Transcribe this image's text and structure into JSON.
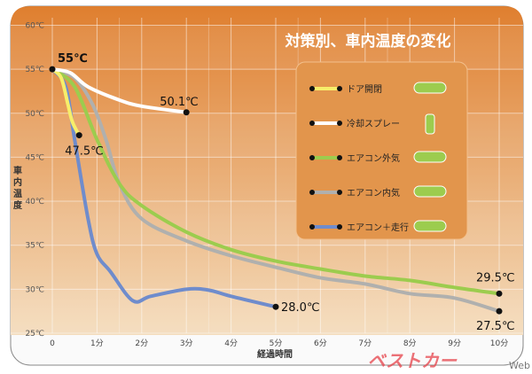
{
  "chart_data": {
    "type": "line",
    "title": "対策別、車内温度の変化",
    "xlabel": "経過時間",
    "ylabel": "車内温度",
    "xlim": [
      0,
      10
    ],
    "ylim": [
      25,
      60
    ],
    "x_ticks": [
      "0",
      "1分",
      "2分",
      "3分",
      "4分",
      "5分",
      "6分",
      "7分",
      "8分",
      "9分",
      "10分"
    ],
    "y_ticks": [
      "25℃",
      "30℃",
      "35℃",
      "40℃",
      "45℃",
      "50℃",
      "55℃",
      "60℃"
    ],
    "grid": true,
    "legend_position": "top-right",
    "series": [
      {
        "name": "ドア開閉",
        "color": "#f7ee6a",
        "icon": "car-doors-open-icon",
        "points": [
          [
            0,
            55
          ],
          [
            0.2,
            54
          ],
          [
            0.35,
            51
          ],
          [
            0.45,
            49
          ],
          [
            0.6,
            47.5
          ]
        ],
        "end_label": "47.5℃"
      },
      {
        "name": "冷却スプレー",
        "color": "#ffffff",
        "icon": "spray-can-icon",
        "points": [
          [
            0,
            55
          ],
          [
            0.4,
            54.6
          ],
          [
            0.8,
            53
          ],
          [
            1.5,
            51.5
          ],
          [
            2,
            50.8
          ],
          [
            3,
            50.1
          ]
        ],
        "end_label": "50.1℃"
      },
      {
        "name": "エアコン外気",
        "color": "#9ccc4e",
        "icon": "car-outside-air-icon",
        "points": [
          [
            0,
            55
          ],
          [
            0.5,
            53
          ],
          [
            1,
            47
          ],
          [
            1.5,
            42
          ],
          [
            2,
            39.5
          ],
          [
            3,
            36.5
          ],
          [
            4,
            34.5
          ],
          [
            5,
            33.2
          ],
          [
            6,
            32.3
          ],
          [
            7,
            31.5
          ],
          [
            8,
            31
          ],
          [
            9,
            30.2
          ],
          [
            10,
            29.5
          ]
        ],
        "end_label": "29.5℃"
      },
      {
        "name": "エアコン内気",
        "color": "#b0b0ae",
        "icon": "car-recirculate-icon",
        "points": [
          [
            0,
            55
          ],
          [
            0.5,
            54
          ],
          [
            0.9,
            51
          ],
          [
            1.2,
            47
          ],
          [
            1.5,
            42
          ],
          [
            2,
            38
          ],
          [
            3,
            35.5
          ],
          [
            4,
            33.8
          ],
          [
            5,
            32.5
          ],
          [
            6,
            31.3
          ],
          [
            7,
            30.6
          ],
          [
            8,
            29.5
          ],
          [
            9,
            29
          ],
          [
            10,
            27.5
          ]
        ],
        "end_label": "27.5℃"
      },
      {
        "name": "エアコン＋走行",
        "color": "#6f8ccc",
        "icon": "car-driving-icon",
        "points": [
          [
            0,
            55
          ],
          [
            0.3,
            53
          ],
          [
            0.5,
            47
          ],
          [
            0.8,
            38
          ],
          [
            1,
            34
          ],
          [
            1.3,
            32
          ],
          [
            1.8,
            28.7
          ],
          [
            2.2,
            29.2
          ],
          [
            3,
            30
          ],
          [
            3.5,
            29.9
          ],
          [
            4,
            29.2
          ],
          [
            5,
            28
          ]
        ],
        "end_label": "28.0℃"
      }
    ],
    "start_label": "55℃"
  },
  "watermark": "ベストカーWeb"
}
